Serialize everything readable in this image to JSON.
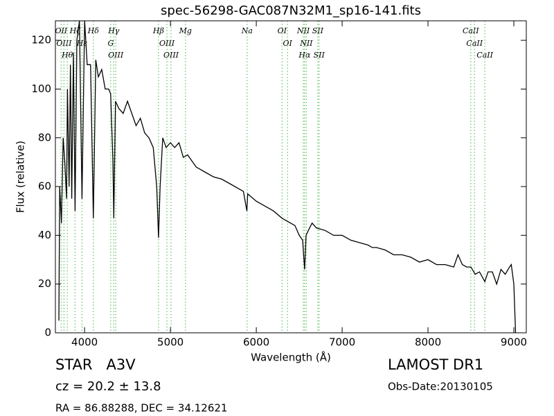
{
  "chart_data": {
    "type": "line",
    "title": "spec-56298-GAC087N32M1_sp16-141.fits",
    "x_label": "Wavelength (Å)",
    "y_label": "Flux (relative)",
    "xlim": [
      3660,
      9145
    ],
    "ylim": [
      0,
      128
    ],
    "xticks": [
      4000,
      5000,
      6000,
      7000,
      8000,
      9000
    ],
    "yticks": [
      0,
      20,
      40,
      60,
      80,
      100,
      120
    ],
    "series": [
      {
        "color": "#000000",
        "x": [
          3700,
          3710,
          3730,
          3750,
          3770,
          3790,
          3800,
          3820,
          3835,
          3850,
          3870,
          3889,
          3910,
          3940,
          3970,
          4000,
          4030,
          4070,
          4102,
          4130,
          4160,
          4200,
          4240,
          4280,
          4304,
          4330,
          4340,
          4360,
          4400,
          4450,
          4500,
          4550,
          4600,
          4650,
          4700,
          4750,
          4800,
          4840,
          4861,
          4880,
          4910,
          4950,
          5000,
          5050,
          5100,
          5150,
          5200,
          5300,
          5400,
          5500,
          5600,
          5700,
          5800,
          5850,
          5890,
          5900,
          6000,
          6100,
          6200,
          6300,
          6400,
          6450,
          6500,
          6540,
          6563,
          6580,
          6620,
          6650,
          6700,
          6800,
          6900,
          7000,
          7100,
          7200,
          7300,
          7350,
          7400,
          7500,
          7600,
          7700,
          7800,
          7900,
          8000,
          8100,
          8200,
          8300,
          8350,
          8400,
          8450,
          8500,
          8550,
          8600,
          8662,
          8700,
          8750,
          8800,
          8850,
          8900,
          8950,
          8970,
          9000,
          9020
        ],
        "values": [
          5,
          60,
          45,
          80,
          70,
          55,
          100,
          60,
          110,
          55,
          115,
          50,
          120,
          128,
          55,
          128,
          110,
          110,
          47,
          112,
          105,
          108,
          100,
          100,
          98,
          70,
          47,
          95,
          92,
          90,
          95,
          90,
          85,
          88,
          82,
          80,
          76,
          60,
          39,
          60,
          80,
          76,
          78,
          76,
          78,
          72,
          73,
          68,
          66,
          64,
          63,
          61,
          59,
          58,
          50,
          57,
          54,
          52,
          50,
          47,
          45,
          44,
          40,
          38,
          26,
          40,
          43,
          45,
          43,
          42,
          40,
          40,
          38,
          37,
          36,
          35,
          35,
          34,
          32,
          32,
          31,
          29,
          30,
          28,
          28,
          27,
          32,
          28,
          27,
          27,
          24,
          25,
          21,
          25,
          25,
          20,
          26,
          24,
          27,
          28,
          20,
          0
        ]
      }
    ],
    "spectral_lines": {
      "color": "#5cbf5c",
      "lines": [
        {
          "wavelength": 3727,
          "label": "OII"
        },
        {
          "wavelength": 3760,
          "label": "OIII"
        },
        {
          "wavelength": 3798,
          "label": "Hθ"
        },
        {
          "wavelength": 3889,
          "label": "Hζ"
        },
        {
          "wavelength": 3970,
          "label": "Hε"
        },
        {
          "wavelength": 4102,
          "label": "Hδ"
        },
        {
          "wavelength": 4304,
          "label": "G"
        },
        {
          "wavelength": 4340,
          "label": "Hγ"
        },
        {
          "wavelength": 4363,
          "label": "OIII"
        },
        {
          "wavelength": 4861,
          "label": "Hβ"
        },
        {
          "wavelength": 4959,
          "label": "OIII"
        },
        {
          "wavelength": 5007,
          "label": "OIII"
        },
        {
          "wavelength": 5175,
          "label": "Mg"
        },
        {
          "wavelength": 5893,
          "label": "Na"
        },
        {
          "wavelength": 6300,
          "label": "OI"
        },
        {
          "wavelength": 6364,
          "label": "OI"
        },
        {
          "wavelength": 6548,
          "label": "NII"
        },
        {
          "wavelength": 6563,
          "label": "Hα"
        },
        {
          "wavelength": 6583,
          "label": "NII"
        },
        {
          "wavelength": 6716,
          "label": "SII"
        },
        {
          "wavelength": 6731,
          "label": "SII"
        },
        {
          "wavelength": 8498,
          "label": "CaII"
        },
        {
          "wavelength": 8542,
          "label": "CaII"
        },
        {
          "wavelength": 8662,
          "label": "CaII"
        }
      ]
    },
    "annotations": [
      "STAR   A3V",
      "cz = 20.2 ± 13.8",
      "RA = 86.88288, DEC = 34.12621",
      "LAMOST DR1",
      "Obs-Date:20130105"
    ]
  }
}
